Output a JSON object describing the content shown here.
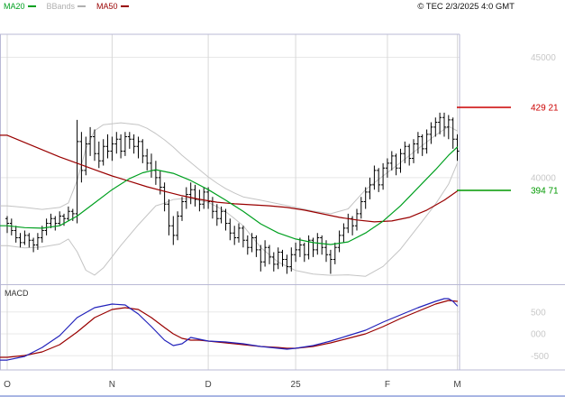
{
  "header": {
    "legend": [
      {
        "label": "MA20",
        "color": "#00a020"
      },
      {
        "label": "BBands",
        "color": "#b0b0b0"
      },
      {
        "label": "MA50",
        "color": "#990000"
      }
    ],
    "copyright": "© TEC 2/3/2025 4:0 GMT"
  },
  "macd_panel": {
    "label": "MACD"
  },
  "chart_data": {
    "type": "ohlc-bars-with-overlays",
    "title": "",
    "xlabel": "",
    "ylabel": "",
    "grid": true,
    "legend_position": "top-left",
    "price_range": [
      355.7,
      468.2
    ],
    "macd_range": [
      -783,
      1072
    ],
    "time_ticks": [
      {
        "i": 0,
        "label": "O"
      },
      {
        "i": 24,
        "label": "N"
      },
      {
        "i": 46,
        "label": "D"
      },
      {
        "i": 66,
        "label": "25"
      },
      {
        "i": 87,
        "label": "F"
      },
      {
        "i": 103,
        "label": "M"
      }
    ],
    "price_axis_labels": [
      {
        "value": 450,
        "text": "45000"
      },
      {
        "value": 400,
        "text": "40000"
      }
    ],
    "macd_axis_labels": [
      {
        "value": 500,
        "text": "500"
      },
      {
        "value": 0,
        "text": "000"
      },
      {
        "value": -500,
        "text": "-500"
      }
    ],
    "levels": [
      {
        "value": 429.21,
        "text": "429 21",
        "color": "#cc0000"
      },
      {
        "value": 394.71,
        "text": "394 71",
        "color": "#009900"
      }
    ],
    "colors": {
      "bars": "#000000",
      "ma20": "#00a020",
      "ma50": "#990000",
      "bbands": "#c4c4c4",
      "macd": "#2222bb",
      "signal": "#990000",
      "grid": "#e8e8e8",
      "vgrid": "#d8d8d8",
      "frame": "#b9b9d6",
      "axis_text": "#c8c8c8",
      "month_text": "#444444"
    },
    "series": {
      "ohlc": [
        [
          383,
          384,
          377,
          381
        ],
        [
          381,
          383,
          376,
          378
        ],
        [
          378,
          380,
          373,
          375
        ],
        [
          375,
          377,
          371,
          373
        ],
        [
          373,
          378,
          372,
          376
        ],
        [
          376,
          377,
          371,
          374
        ],
        [
          374,
          375,
          369,
          372
        ],
        [
          372,
          377,
          370,
          375
        ],
        [
          375,
          380,
          373,
          378
        ],
        [
          378,
          383,
          376,
          381
        ],
        [
          381,
          385,
          379,
          383
        ],
        [
          383,
          384,
          378,
          381
        ],
        [
          381,
          386,
          380,
          384
        ],
        [
          384,
          385,
          380,
          383
        ],
        [
          383,
          388,
          382,
          386
        ],
        [
          386,
          387,
          382,
          385
        ],
        [
          385,
          424,
          381,
          415
        ],
        [
          415,
          419,
          398,
          403
        ],
        [
          403,
          417,
          401,
          414
        ],
        [
          414,
          421,
          409,
          417
        ],
        [
          417,
          420,
          407,
          410
        ],
        [
          410,
          415,
          404,
          407
        ],
        [
          407,
          416,
          405,
          413
        ],
        [
          413,
          418,
          408,
          411
        ],
        [
          411,
          417,
          407,
          414
        ],
        [
          414,
          419,
          410,
          416
        ],
        [
          416,
          418,
          408,
          411
        ],
        [
          411,
          419,
          409,
          417
        ],
        [
          417,
          419,
          412,
          416
        ],
        [
          416,
          418,
          410,
          413
        ],
        [
          413,
          417,
          408,
          415
        ],
        [
          415,
          416,
          406,
          409
        ],
        [
          409,
          412,
          403,
          406
        ],
        [
          406,
          410,
          400,
          403
        ],
        [
          403,
          407,
          397,
          400
        ],
        [
          400,
          403,
          393,
          396
        ],
        [
          396,
          398,
          386,
          389
        ],
        [
          389,
          391,
          376,
          380
        ],
        [
          380,
          384,
          372,
          376
        ],
        [
          376,
          386,
          374,
          384
        ],
        [
          384,
          392,
          382,
          390
        ],
        [
          390,
          396,
          387,
          393
        ],
        [
          393,
          398,
          389,
          395
        ],
        [
          395,
          397,
          388,
          391
        ],
        [
          391,
          395,
          386,
          389
        ],
        [
          389,
          396,
          387,
          394
        ],
        [
          394,
          396,
          387,
          390
        ],
        [
          390,
          392,
          383,
          386
        ],
        [
          386,
          389,
          380,
          383
        ],
        [
          383,
          388,
          381,
          386
        ],
        [
          386,
          387,
          378,
          381
        ],
        [
          381,
          383,
          374,
          377
        ],
        [
          377,
          380,
          372,
          375
        ],
        [
          375,
          381,
          373,
          379
        ],
        [
          379,
          380,
          371,
          374
        ],
        [
          374,
          376,
          368,
          371
        ],
        [
          371,
          377,
          369,
          375
        ],
        [
          375,
          376,
          367,
          370
        ],
        [
          370,
          372,
          361,
          365
        ],
        [
          365,
          374,
          363,
          371
        ],
        [
          371,
          372,
          364,
          367
        ],
        [
          367,
          369,
          361,
          364
        ],
        [
          364,
          371,
          362,
          369
        ],
        [
          369,
          370,
          363,
          366
        ],
        [
          366,
          368,
          360,
          363
        ],
        [
          363,
          371,
          361,
          368
        ],
        [
          368,
          373,
          365,
          370
        ],
        [
          370,
          375,
          367,
          372
        ],
        [
          372,
          373,
          365,
          368
        ],
        [
          368,
          376,
          366,
          374
        ],
        [
          374,
          375,
          367,
          370
        ],
        [
          370,
          377,
          368,
          375
        ],
        [
          375,
          376,
          368,
          371
        ],
        [
          371,
          374,
          365,
          368
        ],
        [
          368,
          370,
          360,
          366
        ],
        [
          366,
          373,
          364,
          371
        ],
        [
          371,
          378,
          369,
          376
        ],
        [
          376,
          381,
          373,
          379
        ],
        [
          379,
          385,
          377,
          383
        ],
        [
          383,
          384,
          376,
          380
        ],
        [
          380,
          387,
          378,
          385
        ],
        [
          385,
          392,
          383,
          390
        ],
        [
          390,
          396,
          387,
          394
        ],
        [
          394,
          400,
          391,
          397
        ],
        [
          397,
          405,
          395,
          403
        ],
        [
          403,
          404,
          394,
          397
        ],
        [
          397,
          406,
          395,
          404
        ],
        [
          404,
          408,
          400,
          406
        ],
        [
          406,
          411,
          403,
          409
        ],
        [
          409,
          410,
          401,
          404
        ],
        [
          404,
          412,
          402,
          410
        ],
        [
          410,
          415,
          406,
          413
        ],
        [
          413,
          414,
          405,
          408
        ],
        [
          408,
          416,
          406,
          414
        ],
        [
          414,
          419,
          410,
          417
        ],
        [
          417,
          418,
          409,
          412
        ],
        [
          412,
          420,
          410,
          418
        ],
        [
          418,
          423,
          414,
          421
        ],
        [
          421,
          425,
          417,
          423
        ],
        [
          423,
          427,
          418,
          425
        ],
        [
          425,
          427,
          417,
          421
        ],
        [
          421,
          426,
          416,
          424
        ],
        [
          424,
          425,
          412,
          416
        ],
        [
          416,
          418,
          407,
          411
        ]
      ],
      "ma20_keypoints": [
        [
          0,
          380
        ],
        [
          4,
          379.2
        ],
        [
          8,
          379
        ],
        [
          12,
          380
        ],
        [
          16,
          384
        ],
        [
          20,
          389.5
        ],
        [
          24,
          395
        ],
        [
          28,
          399.6
        ],
        [
          31,
          402
        ],
        [
          34,
          403.3
        ],
        [
          38,
          401.8
        ],
        [
          42,
          398.8
        ],
        [
          46,
          395
        ],
        [
          50,
          390.6
        ],
        [
          54,
          386
        ],
        [
          58,
          380.8
        ],
        [
          62,
          377
        ],
        [
          66,
          374.5
        ],
        [
          70,
          373
        ],
        [
          74,
          372.2
        ],
        [
          78,
          373.3
        ],
        [
          82,
          377
        ],
        [
          86,
          381.9
        ],
        [
          90,
          388.3
        ],
        [
          94,
          395.8
        ],
        [
          98,
          403.3
        ],
        [
          101,
          409.3
        ],
        [
          103,
          412.7
        ]
      ],
      "ma50_keypoints": [
        [
          0,
          417.6
        ],
        [
          4,
          414.6
        ],
        [
          8,
          411.6
        ],
        [
          12,
          408.6
        ],
        [
          16,
          406
        ],
        [
          20,
          403.3
        ],
        [
          24,
          400.7
        ],
        [
          28,
          398.5
        ],
        [
          32,
          396.2
        ],
        [
          36,
          394.3
        ],
        [
          40,
          392.5
        ],
        [
          44,
          391
        ],
        [
          48,
          389.8
        ],
        [
          52,
          389.1
        ],
        [
          56,
          388.7
        ],
        [
          60,
          388.3
        ],
        [
          64,
          387.6
        ],
        [
          68,
          386.5
        ],
        [
          72,
          385
        ],
        [
          76,
          383.5
        ],
        [
          80,
          382.4
        ],
        [
          84,
          381.6
        ],
        [
          88,
          382
        ],
        [
          92,
          383.5
        ],
        [
          96,
          386.5
        ],
        [
          100,
          390.6
        ],
        [
          103,
          394.4
        ]
      ],
      "bb_upper_keypoints": [
        [
          0,
          388.3
        ],
        [
          4,
          387.6
        ],
        [
          8,
          386.8
        ],
        [
          12,
          387.6
        ],
        [
          14,
          389.5
        ],
        [
          16,
          398.8
        ],
        [
          18,
          412
        ],
        [
          20,
          419.5
        ],
        [
          22,
          422
        ],
        [
          26,
          422.8
        ],
        [
          30,
          422
        ],
        [
          32,
          420.5
        ],
        [
          34,
          418.3
        ],
        [
          36,
          415.7
        ],
        [
          38,
          412.7
        ],
        [
          40,
          409.3
        ],
        [
          42,
          406.3
        ],
        [
          44,
          403.3
        ],
        [
          46,
          400.3
        ],
        [
          48,
          397.7
        ],
        [
          50,
          395.4
        ],
        [
          52,
          393.6
        ],
        [
          54,
          392
        ],
        [
          58,
          390.6
        ],
        [
          62,
          389.1
        ],
        [
          66,
          387.6
        ],
        [
          70,
          386.1
        ],
        [
          74,
          385
        ],
        [
          78,
          387
        ],
        [
          82,
          395
        ],
        [
          86,
          400.7
        ],
        [
          90,
          406.3
        ],
        [
          94,
          412
        ],
        [
          98,
          417.6
        ],
        [
          101,
          421.3
        ],
        [
          103,
          419.4
        ]
      ],
      "bb_lower_rule": "lower = 2*MA20 - upper (symmetric bands)",
      "macd_line_keypoints": [
        [
          0,
          -600
        ],
        [
          4,
          -515
        ],
        [
          8,
          -310
        ],
        [
          12,
          -41
        ],
        [
          16,
          371
        ],
        [
          20,
          598
        ],
        [
          24,
          680
        ],
        [
          27,
          660
        ],
        [
          30,
          454
        ],
        [
          33,
          165
        ],
        [
          36,
          -144
        ],
        [
          38,
          -268
        ],
        [
          40,
          -227
        ],
        [
          42,
          -82
        ],
        [
          44,
          -124
        ],
        [
          46,
          -165
        ],
        [
          50,
          -186
        ],
        [
          54,
          -227
        ],
        [
          58,
          -289
        ],
        [
          62,
          -330
        ],
        [
          64,
          -350
        ],
        [
          66,
          -330
        ],
        [
          70,
          -268
        ],
        [
          74,
          -165
        ],
        [
          78,
          -41
        ],
        [
          82,
          82
        ],
        [
          86,
          268
        ],
        [
          90,
          433
        ],
        [
          94,
          598
        ],
        [
          98,
          742
        ],
        [
          100,
          804
        ],
        [
          101,
          804
        ],
        [
          102,
          742
        ],
        [
          103,
          639
        ]
      ],
      "macd_signal_keypoints": [
        [
          0,
          -536
        ],
        [
          4,
          -495
        ],
        [
          8,
          -412
        ],
        [
          12,
          -247
        ],
        [
          16,
          41
        ],
        [
          20,
          371
        ],
        [
          24,
          557
        ],
        [
          27,
          598
        ],
        [
          30,
          557
        ],
        [
          33,
          371
        ],
        [
          36,
          144
        ],
        [
          38,
          0
        ],
        [
          40,
          -103
        ],
        [
          42,
          -144
        ],
        [
          44,
          -144
        ],
        [
          46,
          -165
        ],
        [
          50,
          -206
        ],
        [
          54,
          -247
        ],
        [
          58,
          -289
        ],
        [
          62,
          -310
        ],
        [
          64,
          -330
        ],
        [
          66,
          -330
        ],
        [
          70,
          -289
        ],
        [
          74,
          -206
        ],
        [
          78,
          -103
        ],
        [
          82,
          0
        ],
        [
          86,
          165
        ],
        [
          90,
          350
        ],
        [
          94,
          515
        ],
        [
          98,
          680
        ],
        [
          101,
          763
        ],
        [
          103,
          742
        ]
      ]
    }
  }
}
